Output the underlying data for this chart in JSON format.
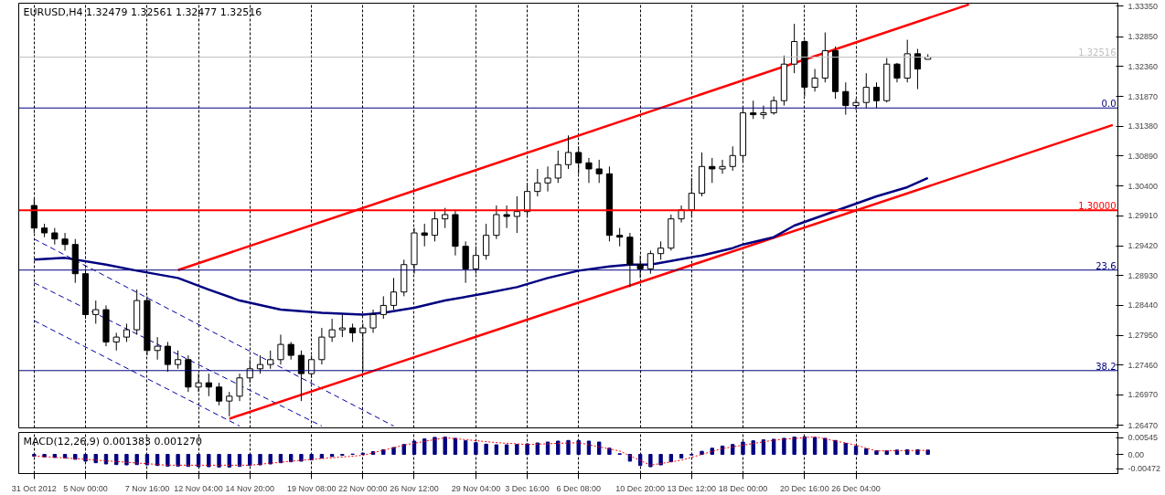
{
  "chart_data": [
    {
      "type": "candlestick",
      "title": "EURUSD,H4  1.32479 1.32561 1.32477 1.32516",
      "tick_labels": "y",
      "grid": "x",
      "categories": [
        null,
        null,
        null,
        null,
        null,
        null,
        null,
        null,
        null,
        null,
        null,
        null,
        null,
        null,
        null,
        null,
        null,
        null,
        null,
        null,
        null,
        null,
        null,
        null,
        null,
        null,
        null,
        null,
        null,
        null,
        null,
        null,
        null,
        null,
        null,
        null,
        null,
        null,
        null,
        null,
        null,
        null,
        null,
        null,
        null,
        null,
        null,
        null,
        null,
        null,
        null,
        null,
        null,
        null,
        null,
        null,
        null,
        null,
        null,
        null,
        null,
        null,
        null,
        null,
        null,
        null,
        null,
        null,
        null,
        null,
        null,
        null,
        null,
        null,
        null,
        null,
        null,
        null,
        null,
        null,
        null,
        null,
        null,
        null,
        null,
        null,
        null,
        null,
        null,
        null,
        null,
        null,
        null,
        null,
        null,
        null,
        null,
        null,
        null,
        null,
        null,
        null,
        null,
        null,
        null,
        null
      ],
      "ylim": [
        1.2643,
        1.334
      ],
      "yticks": [
        {
          "value": 1.3335,
          "label": "1.33350"
        },
        {
          "value": 1.3285,
          "label": "1.32850"
        },
        {
          "value": 1.3236,
          "label": "1.32360"
        },
        {
          "value": 1.3187,
          "label": "1.31870"
        },
        {
          "value": 1.3138,
          "label": "1.31380"
        },
        {
          "value": 1.3089,
          "label": "1.30890"
        },
        {
          "value": 1.304,
          "label": "1.30400"
        },
        {
          "value": 1.2991,
          "label": "1.29910"
        },
        {
          "value": 1.2942,
          "label": "1.29420"
        },
        {
          "value": 1.2893,
          "label": "1.28930"
        },
        {
          "value": 1.2844,
          "label": "1.28440"
        },
        {
          "value": 1.2795,
          "label": "1.27950"
        },
        {
          "value": 1.2746,
          "label": "1.27460"
        },
        {
          "value": 1.2697,
          "label": "1.26970"
        },
        {
          "value": 1.2647,
          "label": "1.26470"
        }
      ],
      "ref_lines": [
        {
          "axis": "y",
          "value": 1.3,
          "label": "1.30000",
          "color": "#ff0000"
        },
        {
          "axis": "y",
          "value": 1.32516,
          "label": "1.32516",
          "color": "#c0c0c0"
        },
        {
          "axis": "y",
          "value": 1.3168,
          "color": "#000080"
        },
        {
          "axis": "y",
          "value": 1.2902,
          "color": "#000080"
        },
        {
          "axis": "y",
          "value": 1.2737,
          "color": "#000080"
        }
      ],
      "annotations": [
        {
          "text": "0.0",
          "y": 1.3168
        },
        {
          "text": "23.6",
          "y": 1.2902
        },
        {
          "text": "38.2",
          "y": 1.2737
        }
      ],
      "series": [
        {
          "type": "line",
          "color": "#0000a0",
          "line_style": "dashed",
          "values": [
            1.2953,
            null,
            null,
            null,
            null,
            null,
            null,
            null,
            null,
            null,
            null,
            null,
            null,
            null,
            null,
            null,
            null,
            null,
            null,
            null,
            null,
            null,
            null,
            null,
            null,
            null,
            null,
            null,
            null,
            null,
            null,
            null,
            null,
            null,
            null,
            1.2646,
            null,
            null,
            null,
            null,
            null,
            null,
            null,
            null,
            null,
            null,
            null,
            null,
            null,
            null,
            null,
            null,
            null,
            null,
            null,
            null,
            null,
            null,
            null,
            null,
            null,
            null,
            null,
            null,
            null,
            null,
            null,
            null,
            null,
            null,
            null,
            null,
            null,
            null,
            null,
            null,
            null,
            null,
            null,
            null,
            null,
            null,
            null,
            null,
            null,
            null,
            null,
            null,
            null,
            null,
            null,
            null,
            null,
            null,
            null,
            null,
            null,
            null,
            null,
            null,
            null,
            null,
            null,
            null,
            null,
            null
          ]
        },
        {
          "type": "line",
          "color": "#0000a0",
          "line_style": "dashed",
          "values": [
            1.2881,
            null,
            null,
            null,
            null,
            null,
            null,
            null,
            null,
            null,
            null,
            null,
            null,
            null,
            null,
            null,
            null,
            null,
            null,
            null,
            null,
            null,
            null,
            null,
            null,
            null,
            null,
            null,
            1.2646,
            null,
            null,
            null,
            null,
            null,
            null,
            null,
            null,
            null,
            null,
            null,
            null,
            null,
            null,
            null,
            null,
            null,
            null,
            null,
            null,
            null,
            null,
            null,
            null,
            null,
            null,
            null,
            null,
            null,
            null,
            null,
            null,
            null,
            null,
            null,
            null,
            null,
            null,
            null,
            null,
            null,
            null,
            null,
            null,
            null,
            null,
            null,
            null,
            null,
            null,
            null,
            null,
            null,
            null,
            null,
            null,
            null,
            null,
            null,
            null,
            null,
            null,
            null,
            null,
            null,
            null,
            null,
            null,
            null,
            null,
            null,
            null,
            null,
            null,
            null,
            null,
            null
          ]
        },
        {
          "type": "line",
          "color": "#0000a0",
          "line_style": "dashed",
          "values": [
            1.2819,
            null,
            null,
            null,
            null,
            null,
            null,
            null,
            null,
            null,
            null,
            null,
            null,
            null,
            null,
            null,
            null,
            null,
            null,
            null,
            1.2646,
            null,
            null,
            null,
            null,
            null,
            null,
            null,
            null,
            null,
            null,
            null,
            null,
            null,
            null,
            null,
            null,
            null,
            null,
            null,
            null,
            null,
            null,
            null,
            null,
            null,
            null,
            null,
            null,
            null,
            null,
            null,
            null,
            null,
            null,
            null,
            null,
            null,
            null,
            null,
            null,
            null,
            null,
            null,
            null,
            null,
            null,
            null,
            null,
            null,
            null,
            null,
            null,
            null,
            null,
            null,
            null,
            null,
            null,
            null,
            null,
            null,
            null,
            null,
            null,
            null,
            null,
            null,
            null,
            null,
            null,
            null,
            null,
            null,
            null,
            null,
            null,
            null,
            null,
            null,
            null,
            null,
            null,
            null,
            null,
            null
          ]
        },
        {
          "type": "line",
          "color": "#ff0000",
          "line_style": "solid",
          "values": [
            null,
            null,
            null,
            null,
            null,
            null,
            null,
            null,
            null,
            null,
            null,
            null,
            null,
            null,
            1.2902,
            null,
            null,
            null,
            null,
            null,
            null,
            null,
            null,
            null,
            null,
            null,
            null,
            null,
            null,
            null,
            null,
            null,
            null,
            null,
            null,
            null,
            null,
            null,
            null,
            null,
            null,
            null,
            null,
            null,
            null,
            null,
            null,
            null,
            null,
            null,
            null,
            null,
            null,
            null,
            null,
            null,
            null,
            null,
            null,
            null,
            null,
            null,
            null,
            null,
            null,
            null,
            null,
            null,
            null,
            null,
            null,
            null,
            null,
            null,
            null,
            null,
            null,
            null,
            null,
            null,
            null,
            null,
            null,
            null,
            null,
            null,
            null,
            null,
            null,
            null,
            null,
            1.3338,
            null,
            null,
            null,
            null,
            null,
            null,
            null,
            null,
            null,
            null,
            null,
            null,
            null,
            null
          ]
        },
        {
          "type": "line",
          "color": "#ff0000",
          "line_style": "solid",
          "values": [
            null,
            null,
            null,
            null,
            null,
            null,
            null,
            null,
            null,
            null,
            null,
            null,
            null,
            null,
            null,
            null,
            null,
            null,
            null,
            1.2658,
            null,
            null,
            null,
            null,
            null,
            null,
            null,
            null,
            null,
            null,
            null,
            null,
            null,
            null,
            null,
            null,
            null,
            null,
            null,
            null,
            null,
            null,
            null,
            null,
            null,
            null,
            null,
            null,
            null,
            null,
            null,
            null,
            null,
            null,
            null,
            null,
            null,
            null,
            null,
            null,
            null,
            null,
            null,
            null,
            null,
            null,
            null,
            null,
            null,
            null,
            null,
            null,
            null,
            null,
            null,
            null,
            null,
            null,
            null,
            null,
            null,
            null,
            null,
            null,
            null,
            null,
            null,
            null,
            null,
            null,
            null,
            null,
            null,
            null,
            null,
            null,
            null,
            null,
            null,
            null,
            null,
            null,
            null,
            null,
            null,
            1.314
          ]
        },
        {
          "type": "line",
          "color": "#000080",
          "line_style": "solid",
          "values": [
            1.2919,
            null,
            null,
            1.2922,
            null,
            null,
            null,
            1.2911,
            null,
            null,
            1.2901,
            null,
            null,
            null,
            1.2889,
            null,
            null,
            1.287,
            null,
            null,
            1.2852,
            null,
            null,
            null,
            1.2837,
            null,
            null,
            null,
            1.2832,
            null,
            null,
            null,
            1.2829,
            null,
            1.2832,
            null,
            null,
            1.284,
            null,
            null,
            1.2852,
            null,
            null,
            null,
            1.2864,
            null,
            null,
            1.2874,
            null,
            null,
            1.2889,
            null,
            null,
            1.2901,
            null,
            null,
            1.2908,
            null,
            1.2911,
            null,
            1.2911,
            null,
            1.2917,
            null,
            null,
            1.2926,
            null,
            null,
            1.2938,
            1.2944,
            null,
            null,
            1.2956,
            null,
            1.2975,
            null,
            null,
            1.2993,
            null,
            null,
            1.3011,
            null,
            1.3023,
            null,
            null,
            1.3038,
            null,
            1.3053,
            null,
            null,
            null,
            null,
            null,
            null,
            null,
            null,
            null,
            null,
            null,
            null,
            null,
            null,
            null,
            null,
            null,
            null
          ]
        },
        {
          "color": "#000000",
          "ohlc": [
            [
              1.3008,
              1.3019,
              1.2963,
              1.2971
            ],
            [
              1.2971,
              1.2978,
              1.2956,
              1.2963
            ],
            [
              1.2963,
              1.2971,
              1.2944,
              1.2953
            ],
            [
              1.2953,
              1.2963,
              1.2934,
              1.2944
            ],
            [
              1.2944,
              1.2953,
              1.2881,
              1.2896
            ],
            [
              1.2896,
              1.2904,
              1.2822,
              1.2829
            ],
            [
              1.2829,
              1.2852,
              1.2814,
              1.2837
            ],
            [
              1.2837,
              1.2844,
              1.2777,
              1.2784
            ],
            [
              1.2784,
              1.2799,
              1.277,
              1.2792
            ],
            [
              1.2792,
              1.2814,
              1.2784,
              1.2804
            ],
            [
              1.2804,
              1.287,
              1.2796,
              1.2852
            ],
            [
              1.2852,
              1.2859,
              1.2762,
              1.277
            ],
            [
              1.277,
              1.2792,
              1.2755,
              1.2777
            ],
            [
              1.2777,
              1.2784,
              1.2735,
              1.2747
            ],
            [
              1.2747,
              1.277,
              1.274,
              1.2755
            ],
            [
              1.2755,
              1.2762,
              1.2702,
              1.271
            ],
            [
              1.271,
              1.2732,
              1.2702,
              1.2717
            ],
            [
              1.2717,
              1.2732,
              1.2695,
              1.271
            ],
            [
              1.271,
              1.2717,
              1.268,
              1.2687
            ],
            [
              1.2687,
              1.2702,
              1.2662,
              1.2695
            ],
            [
              1.2695,
              1.2732,
              1.2687,
              1.2725
            ],
            [
              1.2725,
              1.2755,
              1.2717,
              1.274
            ],
            [
              1.274,
              1.2762,
              1.2732,
              1.2747
            ],
            [
              1.2747,
              1.277,
              1.274,
              1.2755
            ],
            [
              1.2755,
              1.2796,
              1.2747,
              1.278
            ],
            [
              1.278,
              1.2784,
              1.2755,
              1.2762
            ],
            [
              1.2762,
              1.277,
              1.2687,
              1.2732
            ],
            [
              1.2732,
              1.2762,
              1.2725,
              1.2755
            ],
            [
              1.2755,
              1.2807,
              1.2747,
              1.2792
            ],
            [
              1.2792,
              1.2822,
              1.2784,
              1.2804
            ],
            [
              1.2804,
              1.2829,
              1.2792,
              1.2807
            ],
            [
              1.2807,
              1.2814,
              1.2784,
              1.2799
            ],
            [
              1.2799,
              1.2814,
              1.2735,
              1.2807
            ],
            [
              1.2807,
              1.2837,
              1.2799,
              1.2829
            ],
            [
              1.2829,
              1.2859,
              1.2822,
              1.2844
            ],
            [
              1.2844,
              1.2889,
              1.2837,
              1.2866
            ],
            [
              1.2866,
              1.2919,
              1.2859,
              1.2911
            ],
            [
              1.2911,
              1.2971,
              1.2896,
              1.2963
            ],
            [
              1.2963,
              1.2978,
              1.2941,
              1.2959
            ],
            [
              1.2959,
              1.2998,
              1.2949,
              1.2986
            ],
            [
              1.2986,
              1.3004,
              1.2971,
              1.2993
            ],
            [
              1.2993,
              1.3001,
              1.2926,
              1.2941
            ],
            [
              1.2941,
              1.2949,
              1.2881,
              1.2904
            ],
            [
              1.2904,
              1.2941,
              1.2896,
              1.2926
            ],
            [
              1.2926,
              1.2978,
              1.2919,
              1.2959
            ],
            [
              1.2959,
              1.3008,
              1.2953,
              1.2993
            ],
            [
              1.2993,
              1.3008,
              1.2971,
              1.299
            ],
            [
              1.299,
              1.3023,
              1.2963,
              1.2998
            ],
            [
              1.2998,
              1.3045,
              1.299,
              1.3031
            ],
            [
              1.3031,
              1.3068,
              1.3023,
              1.3045
            ],
            [
              1.3045,
              1.3072,
              1.3031,
              1.3053
            ],
            [
              1.3053,
              1.3098,
              1.3045,
              1.3075
            ],
            [
              1.3075,
              1.3123,
              1.3068,
              1.3095
            ],
            [
              1.3095,
              1.3105,
              1.306,
              1.3078
            ],
            [
              1.3078,
              1.3086,
              1.3045,
              1.3068
            ],
            [
              1.3068,
              1.3083,
              1.3045,
              1.306
            ],
            [
              1.306,
              1.3072,
              1.2949,
              1.2959
            ],
            [
              1.2959,
              1.2971,
              1.2941,
              1.2956
            ],
            [
              1.2956,
              1.2963,
              1.2874,
              1.2911
            ],
            [
              1.2911,
              1.2926,
              1.2889,
              1.2904
            ],
            [
              1.2904,
              1.2934,
              1.2896,
              1.2929
            ],
            [
              1.2929,
              1.2949,
              1.2919,
              1.2938
            ],
            [
              1.2938,
              1.2993,
              1.2934,
              1.2986
            ],
            [
              1.2986,
              1.3008,
              1.298,
              1.3001
            ],
            [
              1.3001,
              1.3053,
              1.299,
              1.3028
            ],
            [
              1.3028,
              1.3095,
              1.3023,
              1.3072
            ],
            [
              1.3072,
              1.3086,
              1.3045,
              1.3068
            ],
            [
              1.3068,
              1.3083,
              1.306,
              1.3072
            ],
            [
              1.3072,
              1.3105,
              1.3065,
              1.309
            ],
            [
              1.309,
              1.3168,
              1.3078,
              1.316
            ],
            [
              1.316,
              1.318,
              1.315,
              1.3157
            ],
            [
              1.3157,
              1.3172,
              1.315,
              1.316
            ],
            [
              1.316,
              1.3187,
              1.3157,
              1.318
            ],
            [
              1.318,
              1.3254,
              1.3172,
              1.324
            ],
            [
              1.324,
              1.3306,
              1.3225,
              1.3277
            ],
            [
              1.3277,
              1.328,
              1.3187,
              1.3202
            ],
            [
              1.3202,
              1.3232,
              1.3195,
              1.3217
            ],
            [
              1.3217,
              1.3292,
              1.321,
              1.3262
            ],
            [
              1.3262,
              1.3269,
              1.3183,
              1.3195
            ],
            [
              1.3195,
              1.321,
              1.3157,
              1.3172
            ],
            [
              1.3172,
              1.3183,
              1.3165,
              1.3177
            ],
            [
              1.3177,
              1.3225,
              1.3168,
              1.3202
            ],
            [
              1.3202,
              1.321,
              1.3168,
              1.318
            ],
            [
              1.318,
              1.325,
              1.3177,
              1.324
            ],
            [
              1.324,
              1.3242,
              1.321,
              1.3217
            ],
            [
              1.3217,
              1.328,
              1.321,
              1.3257
            ],
            [
              1.3257,
              1.3265,
              1.3199,
              1.3232
            ],
            [
              1.32479,
              1.32561,
              1.32477,
              1.32516
            ],
            null,
            null,
            null,
            null,
            null,
            null,
            null,
            null,
            null,
            null,
            null,
            null,
            null,
            null,
            null,
            null,
            null,
            null
          ]
        }
      ]
    },
    {
      "type": "bar",
      "title": "MACD(12,26,9) 0.001383 0.001270",
      "grid": "x",
      "categories": [
        "31 Oct 2012",
        null,
        null,
        null,
        null,
        "5 Nov 00:00",
        null,
        null,
        null,
        null,
        null,
        "7 Nov 16:00",
        null,
        null,
        null,
        null,
        "12 Nov 04:00",
        null,
        null,
        null,
        null,
        "14 Nov 20:00",
        null,
        null,
        null,
        null,
        null,
        "19 Nov 08:00",
        null,
        null,
        null,
        null,
        "22 Nov 00:00",
        null,
        null,
        null,
        null,
        "26 Nov 12:00",
        null,
        null,
        null,
        null,
        null,
        "29 Nov 04:00",
        null,
        null,
        null,
        null,
        "3 Dec 16:00",
        null,
        null,
        null,
        null,
        "6 Dec 08:00",
        null,
        null,
        null,
        null,
        null,
        "10 Dec 20:00",
        null,
        null,
        null,
        null,
        "13 Dec 12:00",
        null,
        null,
        null,
        null,
        "18 Dec 00:00",
        null,
        null,
        null,
        null,
        null,
        "20 Dec 16:00",
        null,
        null,
        null,
        null,
        "26 Dec 04:00",
        null,
        null,
        null,
        null,
        null,
        null,
        null,
        null,
        null,
        null,
        null,
        null,
        null,
        null,
        null,
        null,
        null,
        null,
        null,
        null,
        null,
        null,
        null,
        null,
        null
      ],
      "ylim": [
        -0.0062,
        0.0071
      ],
      "yticks": [
        {
          "value": 0.00545,
          "label": "0.00545"
        },
        {
          "value": 0,
          "label": "0.00"
        },
        {
          "value": -0.00472,
          "label": "-0.00472"
        }
      ],
      "series": [
        {
          "color": "#000080",
          "values": [
            -0.0006,
            -0.0008,
            -0.001,
            -0.0012,
            -0.0016,
            -0.0022,
            -0.0027,
            -0.0031,
            -0.0033,
            -0.0034,
            -0.0033,
            -0.0034,
            -0.0036,
            -0.0038,
            -0.0038,
            -0.0039,
            -0.004,
            -0.004,
            -0.0041,
            -0.0041,
            -0.0039,
            -0.0036,
            -0.0034,
            -0.0031,
            -0.0027,
            -0.0024,
            -0.0022,
            -0.0018,
            -0.0012,
            -0.0007,
            -0.0003,
            0.0001,
            0.0004,
            0.0009,
            0.0015,
            0.0022,
            0.0032,
            0.0043,
            0.005,
            0.0055,
            0.0056,
            0.0052,
            0.0044,
            0.0038,
            0.0033,
            0.0031,
            0.0031,
            0.0032,
            0.0034,
            0.0037,
            0.004,
            0.0043,
            0.0045,
            0.0045,
            0.0043,
            0.004,
            0.002,
            0.0002,
            -0.0022,
            -0.0036,
            -0.004,
            -0.0034,
            -0.0024,
            -0.0012,
            -0.0002,
            0.001,
            0.002,
            0.0027,
            0.0032,
            0.004,
            0.0044,
            0.0047,
            0.0049,
            0.0052,
            0.0056,
            0.0057,
            0.0055,
            0.0052,
            0.0045,
            0.0036,
            0.0026,
            0.0018,
            0.0012,
            0.0012,
            0.0014,
            0.0015,
            0.0015,
            0.0014,
            null,
            null,
            null,
            null,
            null,
            null,
            null,
            null,
            null,
            null,
            null,
            null,
            null,
            null,
            null,
            null,
            null,
            null
          ]
        },
        {
          "type": "line",
          "color": "#ff0000",
          "line_style": "dotted",
          "values": [
            -0.0005,
            null,
            null,
            null,
            null,
            -0.0016,
            null,
            null,
            null,
            null,
            null,
            null,
            null,
            -0.0035,
            null,
            null,
            null,
            null,
            null,
            null,
            null,
            -0.0035,
            null,
            null,
            null,
            null,
            -0.0019,
            null,
            null,
            null,
            null,
            null,
            -0.0003,
            null,
            null,
            null,
            0.003,
            null,
            null,
            null,
            0.0054,
            null,
            null,
            null,
            null,
            0.0038,
            null,
            null,
            0.0032,
            null,
            null,
            null,
            null,
            0.0038,
            null,
            null,
            null,
            0.0011,
            null,
            null,
            -0.0035,
            null,
            null,
            -0.0019,
            null,
            null,
            null,
            0.0019,
            null,
            null,
            null,
            null,
            0.0046,
            null,
            null,
            null,
            0.0057,
            null,
            null,
            null,
            0.003,
            null,
            0.0011,
            null,
            null,
            null,
            null,
            0.0013,
            null,
            null,
            null,
            null,
            null,
            null,
            null,
            null,
            null,
            null,
            null,
            null,
            null,
            null,
            null,
            null,
            null,
            null
          ]
        }
      ]
    }
  ]
}
